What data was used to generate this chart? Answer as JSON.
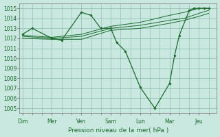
{
  "background_color": "#c8e8e0",
  "grid_color": "#88bbaa",
  "line_color": "#1a6b2a",
  "spine_color": "#888888",
  "title": "Pression niveau de la mer( hPa )",
  "ylim": [
    1004.5,
    1015.5
  ],
  "yticks": [
    1005,
    1006,
    1007,
    1008,
    1009,
    1010,
    1011,
    1012,
    1013,
    1014,
    1015
  ],
  "xlim": [
    -0.1,
    6.6
  ],
  "day_labels": [
    "Dim",
    "Mer",
    "Ven",
    "Sam",
    "Lun",
    "Mar",
    "Jeu"
  ],
  "day_positions": [
    0,
    1,
    2,
    3,
    4,
    5,
    6
  ],
  "line1_x": [
    0.0,
    0.33,
    1.0,
    1.33,
    2.0,
    2.33,
    2.66,
    3.0,
    3.2,
    3.5,
    4.0,
    4.5,
    5.0,
    5.17,
    5.33,
    5.67,
    5.83,
    6.0,
    6.17,
    6.33
  ],
  "line1_y": [
    1012.4,
    1013.0,
    1012.0,
    1011.8,
    1014.6,
    1014.3,
    1013.0,
    1013.0,
    1011.6,
    1010.7,
    1007.1,
    1005.0,
    1007.5,
    1010.3,
    1012.3,
    1014.8,
    1015.0,
    1015.0,
    1015.0,
    1015.0
  ],
  "line2_x": [
    0.0,
    1.0,
    2.0,
    3.0,
    4.0,
    5.0,
    5.5,
    6.0,
    6.33
  ],
  "line2_y": [
    1012.2,
    1012.0,
    1012.2,
    1013.0,
    1013.3,
    1013.8,
    1014.0,
    1014.5,
    1014.8
  ],
  "line3_x": [
    0.0,
    1.0,
    2.0,
    3.0,
    4.0,
    5.0,
    5.5,
    6.0,
    6.33
  ],
  "line3_y": [
    1012.3,
    1012.1,
    1012.4,
    1013.2,
    1013.6,
    1014.3,
    1014.6,
    1015.0,
    1015.0
  ],
  "line4_x": [
    0.0,
    1.0,
    2.0,
    3.0,
    4.0,
    5.0,
    5.5,
    6.0,
    6.33
  ],
  "line4_y": [
    1012.0,
    1011.9,
    1011.9,
    1012.8,
    1013.0,
    1013.5,
    1013.8,
    1014.2,
    1014.5
  ],
  "tick_fontsize": 5.5,
  "xlabel_fontsize": 6.5
}
